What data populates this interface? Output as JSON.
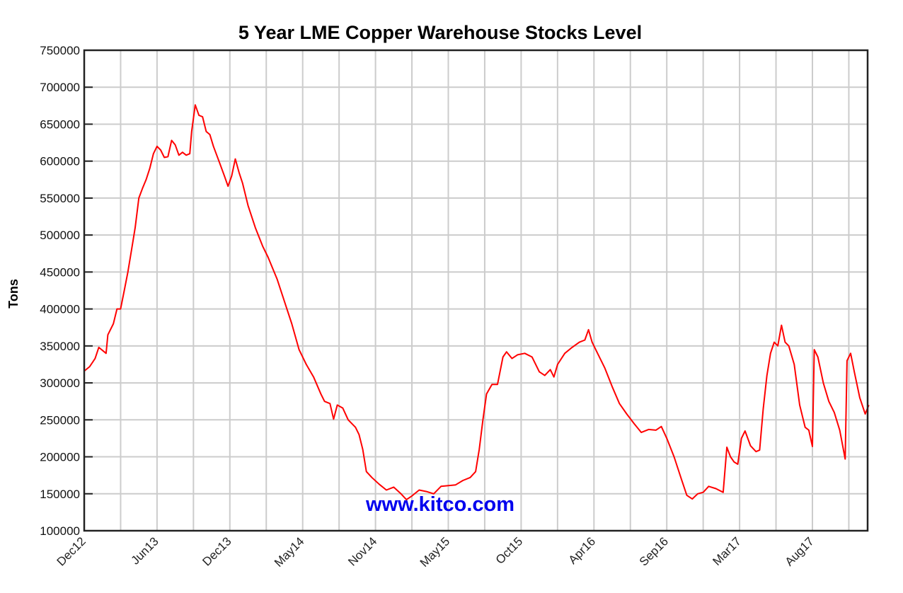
{
  "chart_data": {
    "type": "line",
    "title": "5 Year LME Copper Warehouse Stocks Level",
    "xlabel": "",
    "ylabel": "Tons",
    "watermark": "www.kitco.com",
    "ylim": [
      100000,
      750000
    ],
    "yticks": [
      100000,
      150000,
      200000,
      250000,
      300000,
      350000,
      400000,
      450000,
      500000,
      550000,
      600000,
      650000,
      700000,
      750000
    ],
    "ytick_labels": [
      "100000",
      "150000",
      "200000",
      "250000",
      "300000",
      "350000",
      "400000",
      "450000",
      "500000",
      "550000",
      "600000",
      "650000",
      "700000",
      "750000"
    ],
    "xtick_labels": [
      "Dec12",
      "Jun13",
      "Dec13",
      "May14",
      "Nov14",
      "May15",
      "Oct15",
      "Apr16",
      "Sep16",
      "Mar17",
      "Aug17"
    ],
    "grid": true,
    "legend": null,
    "series": [
      {
        "name": "LME Copper Warehouse Stocks",
        "color": "#ff0000",
        "x_unit": "gridline index (0 = Dec12, 2 = Jun13, ... 20 ≈ late 2017; plot ends at ~21.5)",
        "points": [
          [
            0.0,
            316000
          ],
          [
            0.15,
            322000
          ],
          [
            0.3,
            333000
          ],
          [
            0.4,
            348000
          ],
          [
            0.55,
            342000
          ],
          [
            0.6,
            340000
          ],
          [
            0.65,
            365000
          ],
          [
            0.8,
            380000
          ],
          [
            0.9,
            400000
          ],
          [
            1.0,
            400000
          ],
          [
            1.1,
            425000
          ],
          [
            1.2,
            450000
          ],
          [
            1.3,
            480000
          ],
          [
            1.4,
            510000
          ],
          [
            1.5,
            550000
          ],
          [
            1.6,
            563000
          ],
          [
            1.7,
            575000
          ],
          [
            1.8,
            590000
          ],
          [
            1.9,
            610000
          ],
          [
            2.0,
            620000
          ],
          [
            2.1,
            615000
          ],
          [
            2.2,
            605000
          ],
          [
            2.3,
            606000
          ],
          [
            2.4,
            628000
          ],
          [
            2.5,
            622000
          ],
          [
            2.6,
            608000
          ],
          [
            2.7,
            612000
          ],
          [
            2.8,
            608000
          ],
          [
            2.9,
            610000
          ],
          [
            2.95,
            640000
          ],
          [
            3.05,
            676000
          ],
          [
            3.15,
            662000
          ],
          [
            3.25,
            660000
          ],
          [
            3.35,
            640000
          ],
          [
            3.45,
            636000
          ],
          [
            3.55,
            620000
          ],
          [
            3.7,
            600000
          ],
          [
            3.85,
            580000
          ],
          [
            3.95,
            566000
          ],
          [
            4.05,
            580000
          ],
          [
            4.15,
            603000
          ],
          [
            4.25,
            585000
          ],
          [
            4.35,
            570000
          ],
          [
            4.5,
            540000
          ],
          [
            4.7,
            510000
          ],
          [
            4.9,
            485000
          ],
          [
            5.05,
            470000
          ],
          [
            5.3,
            440000
          ],
          [
            5.5,
            410000
          ],
          [
            5.7,
            380000
          ],
          [
            5.9,
            345000
          ],
          [
            6.1,
            325000
          ],
          [
            6.3,
            308000
          ],
          [
            6.5,
            285000
          ],
          [
            6.6,
            275000
          ],
          [
            6.75,
            272000
          ],
          [
            6.85,
            251000
          ],
          [
            6.95,
            270000
          ],
          [
            7.1,
            266000
          ],
          [
            7.25,
            250000
          ],
          [
            7.45,
            240000
          ],
          [
            7.55,
            230000
          ],
          [
            7.65,
            210000
          ],
          [
            7.75,
            180000
          ],
          [
            7.9,
            172000
          ],
          [
            8.1,
            163000
          ],
          [
            8.3,
            155000
          ],
          [
            8.5,
            159000
          ],
          [
            8.7,
            150000
          ],
          [
            8.85,
            142000
          ],
          [
            9.0,
            147000
          ],
          [
            9.2,
            155000
          ],
          [
            9.4,
            153000
          ],
          [
            9.6,
            150000
          ],
          [
            9.8,
            160000
          ],
          [
            10.0,
            161000
          ],
          [
            10.2,
            162000
          ],
          [
            10.4,
            168000
          ],
          [
            10.6,
            172000
          ],
          [
            10.75,
            180000
          ],
          [
            10.85,
            210000
          ],
          [
            10.95,
            250000
          ],
          [
            11.05,
            285000
          ],
          [
            11.2,
            298000
          ],
          [
            11.35,
            298000
          ],
          [
            11.5,
            335000
          ],
          [
            11.6,
            342000
          ],
          [
            11.75,
            333000
          ],
          [
            11.9,
            338000
          ],
          [
            12.1,
            340000
          ],
          [
            12.3,
            335000
          ],
          [
            12.5,
            315000
          ],
          [
            12.65,
            310000
          ],
          [
            12.8,
            318000
          ],
          [
            12.9,
            308000
          ],
          [
            13.0,
            325000
          ],
          [
            13.2,
            340000
          ],
          [
            13.4,
            348000
          ],
          [
            13.6,
            355000
          ],
          [
            13.75,
            358000
          ],
          [
            13.85,
            372000
          ],
          [
            13.95,
            355000
          ],
          [
            14.1,
            340000
          ],
          [
            14.3,
            320000
          ],
          [
            14.5,
            295000
          ],
          [
            14.7,
            272000
          ],
          [
            14.9,
            258000
          ],
          [
            15.1,
            245000
          ],
          [
            15.3,
            233000
          ],
          [
            15.5,
            237000
          ],
          [
            15.7,
            236000
          ],
          [
            15.85,
            241000
          ],
          [
            16.0,
            225000
          ],
          [
            16.2,
            200000
          ],
          [
            16.4,
            170000
          ],
          [
            16.55,
            148000
          ],
          [
            16.7,
            143000
          ],
          [
            16.85,
            150000
          ],
          [
            17.0,
            152000
          ],
          [
            17.15,
            160000
          ],
          [
            17.35,
            157000
          ],
          [
            17.55,
            152000
          ],
          [
            17.65,
            213000
          ],
          [
            17.75,
            200000
          ],
          [
            17.85,
            193000
          ],
          [
            17.95,
            190000
          ],
          [
            18.05,
            225000
          ],
          [
            18.15,
            235000
          ],
          [
            18.3,
            215000
          ],
          [
            18.45,
            207000
          ],
          [
            18.55,
            209000
          ],
          [
            18.65,
            265000
          ],
          [
            18.75,
            310000
          ],
          [
            18.85,
            340000
          ],
          [
            18.95,
            355000
          ],
          [
            19.05,
            350000
          ],
          [
            19.15,
            378000
          ],
          [
            19.25,
            355000
          ],
          [
            19.35,
            350000
          ],
          [
            19.5,
            325000
          ],
          [
            19.65,
            270000
          ],
          [
            19.8,
            240000
          ],
          [
            19.9,
            236000
          ],
          [
            20.0,
            214000
          ],
          [
            20.05,
            345000
          ],
          [
            20.15,
            335000
          ],
          [
            20.3,
            300000
          ],
          [
            20.45,
            275000
          ],
          [
            20.6,
            260000
          ],
          [
            20.75,
            236000
          ],
          [
            20.9,
            197000
          ],
          [
            20.95,
            330000
          ],
          [
            21.05,
            340000
          ],
          [
            21.15,
            315000
          ],
          [
            21.3,
            280000
          ],
          [
            21.45,
            258000
          ],
          [
            21.55,
            270000
          ]
        ]
      }
    ]
  }
}
